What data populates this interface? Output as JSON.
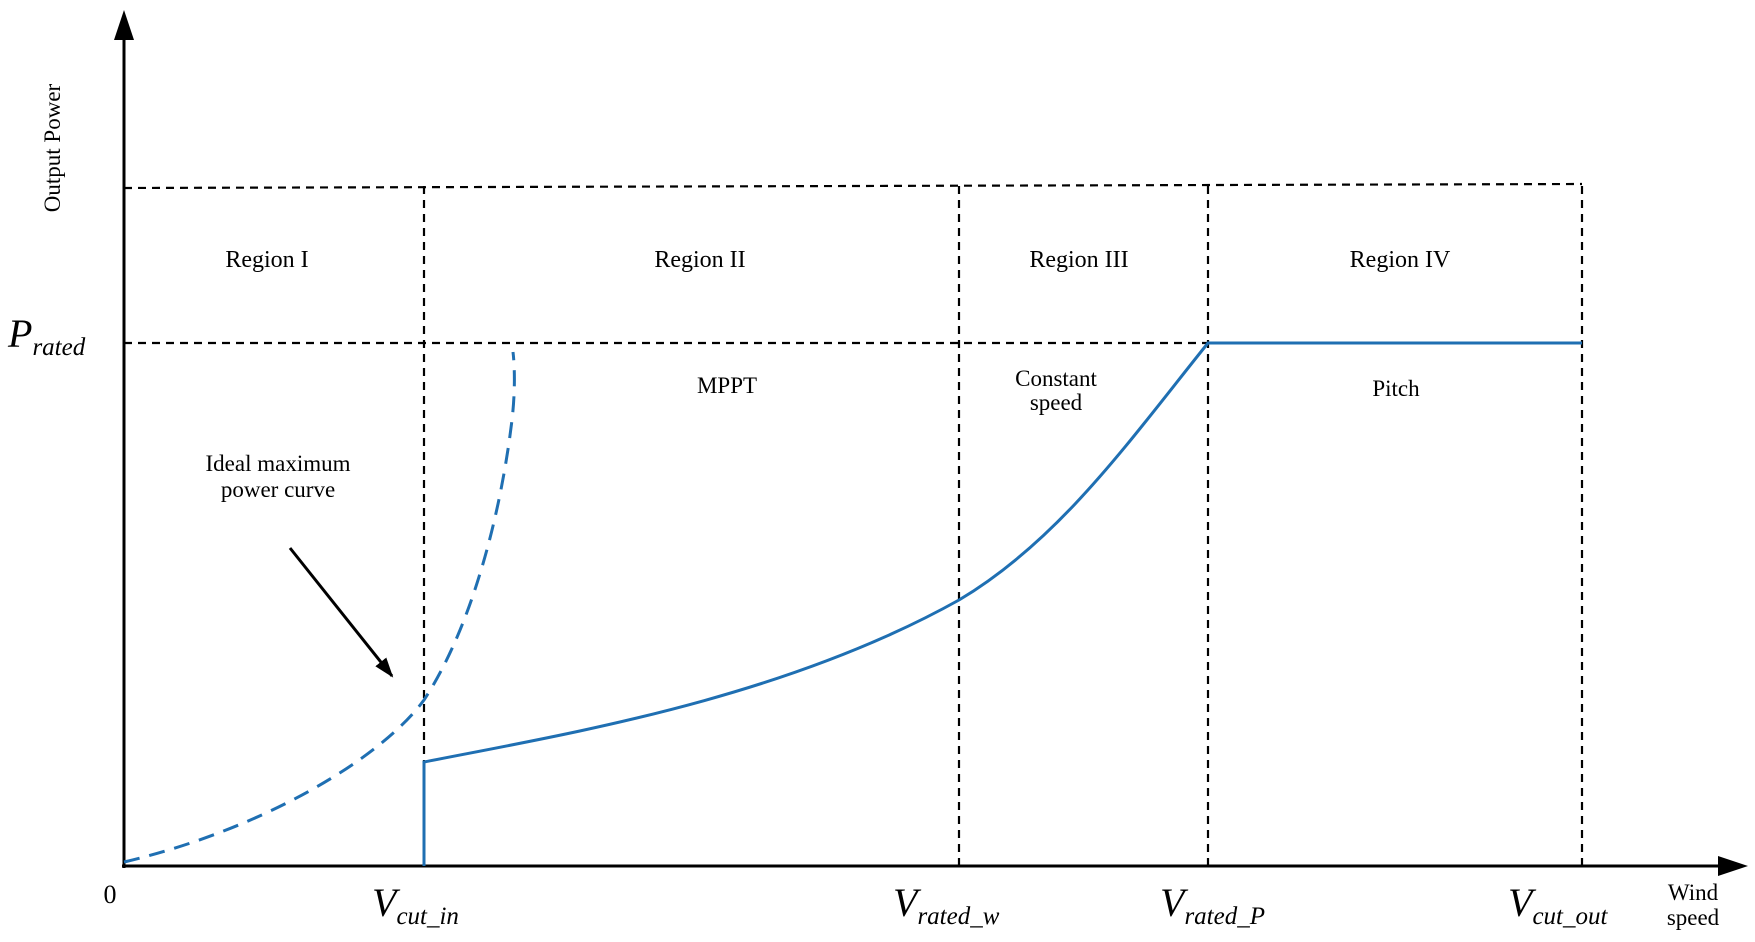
{
  "axes": {
    "y_label": "Output Power",
    "x_label_line1": "Wind",
    "x_label_line2": "speed",
    "origin_label": "0"
  },
  "p_rated": {
    "main": "P",
    "sub": "rated"
  },
  "ticks": [
    {
      "main": "V",
      "sub": "cut_in"
    },
    {
      "main": "V",
      "sub": "rated_w"
    },
    {
      "main": "V",
      "sub": "rated_P"
    },
    {
      "main": "V",
      "sub": "cut_out"
    }
  ],
  "regions": [
    {
      "label": "Region I"
    },
    {
      "label": "Region II",
      "mode": "MPPT"
    },
    {
      "label": "Region III",
      "mode_line1": "Constant",
      "mode_line2": "speed"
    },
    {
      "label": "Region IV",
      "mode": "Pitch"
    }
  ],
  "annotation": {
    "line1": "Ideal maximum",
    "line2": "power curve"
  },
  "colors": {
    "curve": "#1f6fb2",
    "axis": "#000000",
    "grid": "#000000"
  }
}
